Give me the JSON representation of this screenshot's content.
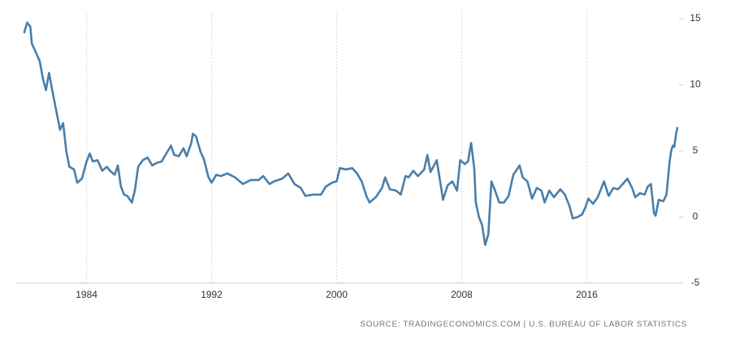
{
  "chart_data": {
    "type": "line",
    "source": "SOURCE: TRADINGECONOMICS.COM | U.S. BUREAU OF LABOR STATISTICS",
    "color": "#4a7ea8",
    "grid": true,
    "xlim": [
      1979.5,
      2021.9
    ],
    "xticks": [
      1984,
      1992,
      2000,
      2008,
      2016
    ],
    "ylim": [
      -5,
      15
    ],
    "yticks": [
      -5,
      0,
      5,
      10,
      15
    ],
    "x": [
      1980.0,
      1980.2,
      1980.4,
      1980.5,
      1980.7,
      1981.0,
      1981.2,
      1981.4,
      1981.6,
      1981.8,
      1982.0,
      1982.3,
      1982.5,
      1982.7,
      1982.9,
      1983.2,
      1983.4,
      1983.7,
      1984.0,
      1984.2,
      1984.4,
      1984.7,
      1985.0,
      1985.3,
      1985.5,
      1985.8,
      1986.0,
      1986.2,
      1986.4,
      1986.6,
      1986.9,
      1987.1,
      1987.3,
      1987.6,
      1987.9,
      1988.2,
      1988.5,
      1988.8,
      1989.1,
      1989.4,
      1989.6,
      1989.9,
      1990.2,
      1990.4,
      1990.7,
      1990.8,
      1991.0,
      1991.3,
      1991.5,
      1991.8,
      1992.0,
      1992.3,
      1992.6,
      1993.0,
      1993.5,
      1994.0,
      1994.5,
      1995.0,
      1995.3,
      1995.7,
      1996.0,
      1996.5,
      1996.9,
      1997.3,
      1997.7,
      1998.0,
      1998.5,
      1999.0,
      1999.3,
      1999.7,
      2000.0,
      2000.2,
      2000.6,
      2001.0,
      2001.3,
      2001.6,
      2001.9,
      2002.1,
      2002.5,
      2002.9,
      2003.1,
      2003.4,
      2003.8,
      2004.1,
      2004.4,
      2004.6,
      2004.9,
      2005.2,
      2005.6,
      2005.8,
      2006.0,
      2006.4,
      2006.7,
      2006.8,
      2007.1,
      2007.4,
      2007.7,
      2007.9,
      2008.2,
      2008.4,
      2008.6,
      2008.8,
      2008.9,
      2009.1,
      2009.3,
      2009.5,
      2009.7,
      2009.9,
      2010.1,
      2010.4,
      2010.7,
      2011.0,
      2011.3,
      2011.7,
      2011.9,
      2012.2,
      2012.5,
      2012.8,
      2013.1,
      2013.3,
      2013.6,
      2013.9,
      2014.3,
      2014.6,
      2014.9,
      2015.1,
      2015.4,
      2015.7,
      2015.9,
      2016.1,
      2016.4,
      2016.7,
      2017.1,
      2017.4,
      2017.7,
      2018.0,
      2018.3,
      2018.6,
      2018.9,
      2019.1,
      2019.4,
      2019.7,
      2019.9,
      2020.1,
      2020.3,
      2020.4,
      2020.6,
      2020.9,
      2021.1,
      2021.3,
      2021.4,
      2021.5,
      2021.6,
      2021.7,
      2021.8
    ],
    "values": [
      13.9,
      14.7,
      14.4,
      13.1,
      12.6,
      11.8,
      10.5,
      9.6,
      10.9,
      9.6,
      8.4,
      6.6,
      7.1,
      5.0,
      3.8,
      3.6,
      2.6,
      2.9,
      4.2,
      4.8,
      4.2,
      4.3,
      3.5,
      3.8,
      3.5,
      3.2,
      3.9,
      2.3,
      1.7,
      1.6,
      1.1,
      2.1,
      3.8,
      4.3,
      4.5,
      3.9,
      4.1,
      4.2,
      4.8,
      5.4,
      4.7,
      4.6,
      5.2,
      4.6,
      5.6,
      6.3,
      6.1,
      4.9,
      4.4,
      3.0,
      2.6,
      3.2,
      3.1,
      3.3,
      3.0,
      2.5,
      2.8,
      2.8,
      3.1,
      2.5,
      2.7,
      2.9,
      3.3,
      2.5,
      2.2,
      1.6,
      1.7,
      1.7,
      2.3,
      2.6,
      2.7,
      3.7,
      3.6,
      3.7,
      3.3,
      2.7,
      1.6,
      1.1,
      1.5,
      2.2,
      3.0,
      2.1,
      2.0,
      1.7,
      3.1,
      3.0,
      3.5,
      3.1,
      3.6,
      4.7,
      3.4,
      4.3,
      2.1,
      1.3,
      2.4,
      2.7,
      2.0,
      4.3,
      4.0,
      4.2,
      5.6,
      3.7,
      1.1,
      0.0,
      -0.6,
      -2.1,
      -1.3,
      2.7,
      2.1,
      1.1,
      1.1,
      1.6,
      3.2,
      3.9,
      3.0,
      2.7,
      1.4,
      2.2,
      2.0,
      1.1,
      2.0,
      1.5,
      2.1,
      1.7,
      0.8,
      -0.1,
      0.0,
      0.2,
      0.7,
      1.4,
      1.0,
      1.5,
      2.7,
      1.6,
      2.2,
      2.1,
      2.5,
      2.9,
      2.2,
      1.5,
      1.8,
      1.7,
      2.3,
      2.5,
      0.3,
      0.1,
      1.3,
      1.2,
      1.7,
      4.2,
      5.0,
      5.4,
      5.3,
      6.2,
      6.8
    ]
  }
}
